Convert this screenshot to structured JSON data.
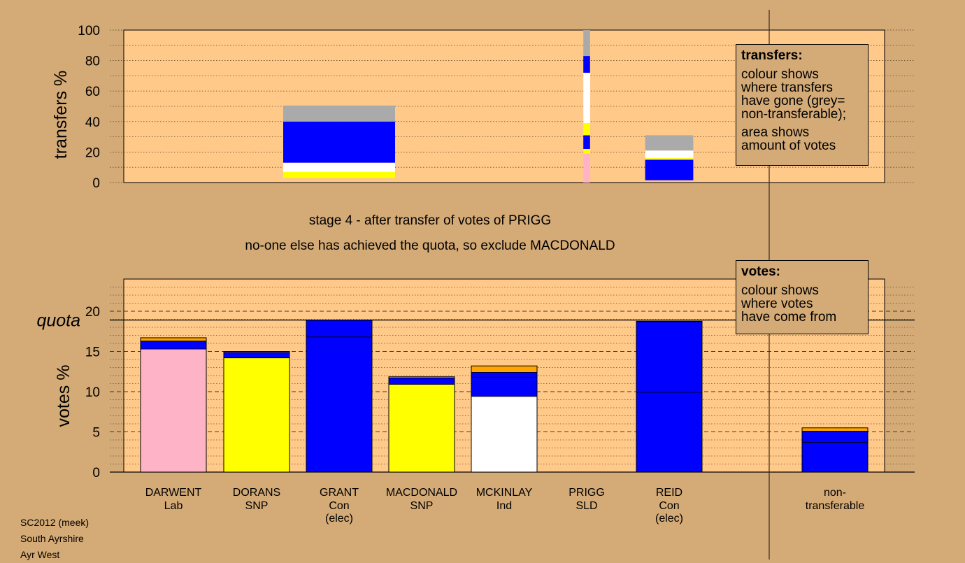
{
  "stage": {
    "line1": "stage 4 - after transfer of votes of PRIGG",
    "line2": "no-one else has achieved the quota, so exclude MACDONALD"
  },
  "legend_transfers": {
    "title": "transfers:",
    "lines1": [
      "colour shows",
      "where transfers",
      "have gone (grey=",
      "non-transferable);"
    ],
    "lines2": [
      "area shows",
      "amount of votes"
    ]
  },
  "legend_votes": {
    "title": "votes:",
    "lines": [
      "colour shows",
      "where votes",
      "have come from"
    ]
  },
  "footer": {
    "lines": [
      "SC2012 (meek)",
      "South Ayrshire",
      "Ayr West"
    ]
  },
  "colors": {
    "background": "#d4aa76",
    "plot_bg": "#ffc98a",
    "Lab": "#ffb3c6",
    "SNP": "#ffff00",
    "Con": "#0000ff",
    "Ind": "#ffffff",
    "SLD": "#ffa500",
    "nontransferable": "#aaaaaa"
  },
  "chart_data": [
    {
      "type": "bar",
      "ylabel": "transfers %",
      "ylim": [
        0,
        100
      ],
      "yticks": [
        0,
        20,
        40,
        60,
        80,
        100
      ],
      "bars": [
        {
          "category": "MACDONALD",
          "width_share": 1.0,
          "segments": [
            {
              "color": "SNP",
              "from": 3,
              "to": 7
            },
            {
              "color": "Ind",
              "from": 7,
              "to": 13
            },
            {
              "color": "Con",
              "from": 13,
              "to": 40
            },
            {
              "color": "nontransferable",
              "from": 40,
              "to": 50.5
            }
          ]
        },
        {
          "category": "PRIGG",
          "width_share": 0.06,
          "segments": [
            {
              "color": "Lab",
              "from": 0,
              "to": 19
            },
            {
              "color": "SNP",
              "from": 19,
              "to": 22
            },
            {
              "color": "Con",
              "from": 22,
              "to": 31
            },
            {
              "color": "SNP",
              "from": 31,
              "to": 39
            },
            {
              "color": "Ind",
              "from": 39,
              "to": 72
            },
            {
              "color": "Con",
              "from": 72,
              "to": 83
            },
            {
              "color": "nontransferable",
              "from": 83,
              "to": 100
            }
          ]
        },
        {
          "category": "REID",
          "width_share": 0.43,
          "segments": [
            {
              "color": "Con",
              "from": 1.5,
              "to": 15
            },
            {
              "color": "SNP",
              "from": 15,
              "to": 16
            },
            {
              "color": "Ind",
              "from": 16,
              "to": 21
            },
            {
              "color": "nontransferable",
              "from": 21,
              "to": 31
            }
          ]
        }
      ]
    },
    {
      "type": "bar",
      "ylabel": "votes %",
      "ylim": [
        0,
        24
      ],
      "yticks": [
        0,
        5,
        10,
        15,
        20
      ],
      "quota": 18.9,
      "quota_label": "quota",
      "categories": [
        {
          "name": "DARWENT",
          "party": "Lab",
          "note": ""
        },
        {
          "name": "DORANS",
          "party": "SNP",
          "note": ""
        },
        {
          "name": "GRANT",
          "party": "Con",
          "note": "(elec)"
        },
        {
          "name": "MACDONALD",
          "party": "SNP",
          "note": ""
        },
        {
          "name": "MCKINLAY",
          "party": "Ind",
          "note": ""
        },
        {
          "name": "PRIGG",
          "party": "SLD",
          "note": ""
        },
        {
          "name": "REID",
          "party": "Con",
          "note": "(elec)"
        },
        {
          "name": "non-",
          "party": "transferable",
          "note": ""
        }
      ],
      "bars": [
        {
          "segments": [
            {
              "color": "Lab",
              "value": 15.3
            },
            {
              "color": "Con",
              "value": 1.0
            },
            {
              "color": "SLD",
              "value": 0.4
            }
          ],
          "lines": []
        },
        {
          "segments": [
            {
              "color": "SNP",
              "value": 14.2
            },
            {
              "color": "Con",
              "value": 0.7
            },
            {
              "color": "SLD",
              "value": 0.1
            }
          ],
          "lines": []
        },
        {
          "segments": [
            {
              "color": "Con",
              "value": 18.9
            }
          ],
          "lines": [
            16.8
          ]
        },
        {
          "segments": [
            {
              "color": "SNP",
              "value": 10.9
            },
            {
              "color": "Con",
              "value": 0.8
            },
            {
              "color": "SLD",
              "value": 0.15
            }
          ],
          "lines": []
        },
        {
          "segments": [
            {
              "color": "Ind",
              "value": 9.4
            },
            {
              "color": "Con",
              "value": 3.0
            },
            {
              "color": "SLD",
              "value": 0.8
            }
          ],
          "lines": [
            11.8
          ]
        },
        {
          "segments": [],
          "lines": []
        },
        {
          "segments": [
            {
              "color": "Con",
              "value": 18.7
            },
            {
              "color": "SLD",
              "value": 0.05
            }
          ],
          "lines": [
            9.9
          ]
        },
        {
          "segments": [
            {
              "color": "Con",
              "value": 5.1
            },
            {
              "color": "SLD",
              "value": 0.4
            }
          ],
          "lines": [
            3.7
          ]
        }
      ]
    }
  ]
}
